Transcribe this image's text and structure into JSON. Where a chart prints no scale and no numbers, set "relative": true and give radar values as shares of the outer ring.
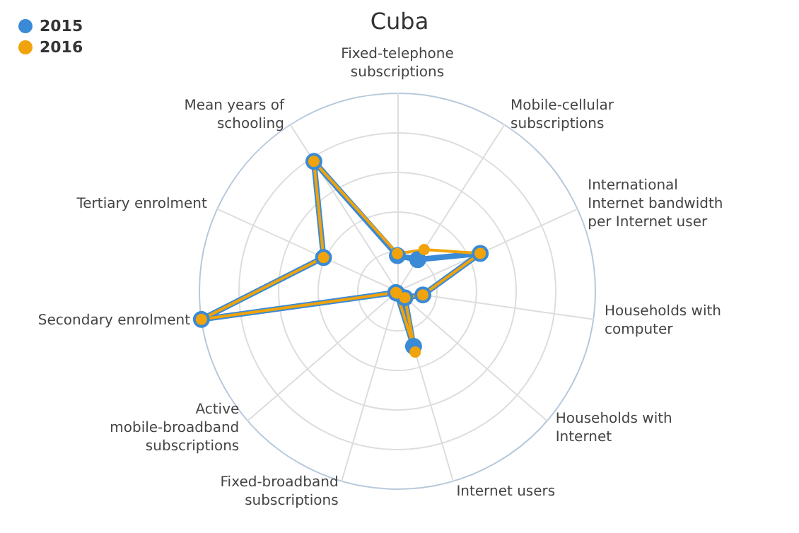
{
  "chart_data": {
    "type": "radar",
    "title": "Cuba",
    "relative": true,
    "legend": "top left",
    "marker": "circle",
    "grid": true,
    "categories": [
      "Fixed-telephone subscriptions",
      "Mobile-cellular subscriptions",
      "International Internet bandwidth per Internet user",
      "Households with computer",
      "Households with Internet",
      "Internet users",
      "Fixed-broadband subscriptions",
      "Active mobile-broadband subscriptions",
      "Secondary enrolment",
      "Tertiary enrolment",
      "Mean years of schooling"
    ],
    "series": [
      {
        "name": "2015",
        "color": "#3a8ad6",
        "values": [
          0.18,
          0.19,
          0.46,
          0.13,
          0.05,
          0.29,
          0.01,
          0.01,
          1.0,
          0.41,
          0.78
        ]
      },
      {
        "name": "2016",
        "color": "#f0a30a",
        "values": [
          0.19,
          0.25,
          0.46,
          0.13,
          0.05,
          0.32,
          0.01,
          0.01,
          1.0,
          0.41,
          0.78
        ]
      }
    ]
  }
}
